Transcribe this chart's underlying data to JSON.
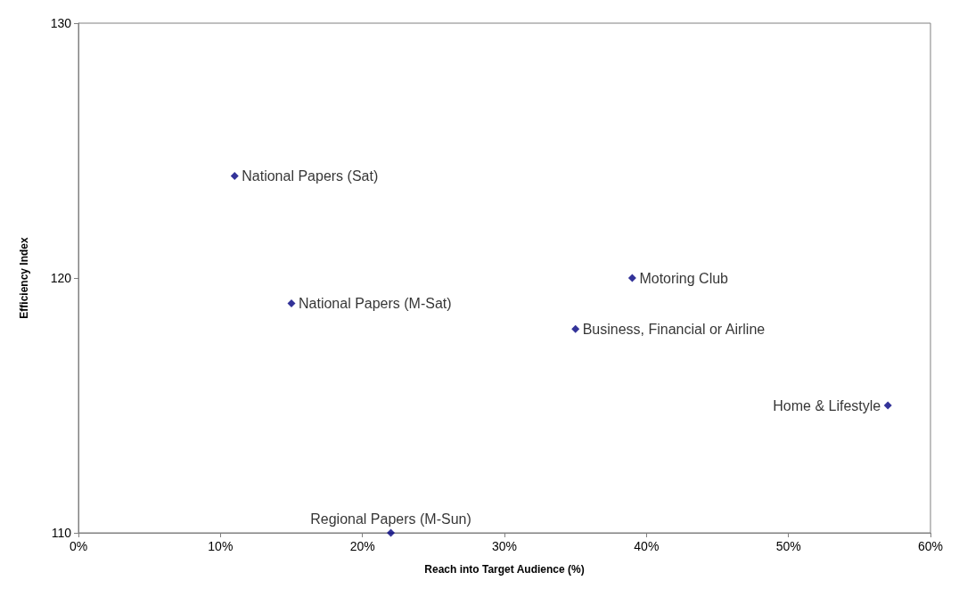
{
  "chart_data": {
    "type": "scatter",
    "xlabel": "Reach into Target Audience (%)",
    "ylabel": "Efficiency Index",
    "x": [
      11,
      15,
      22,
      35,
      39,
      57
    ],
    "values": [
      124,
      119,
      110,
      118,
      120,
      115
    ],
    "color": "#000080",
    "marker": "diamond",
    "grid": false,
    "xlim": [
      0,
      60
    ],
    "xticks": [
      {
        "value": 0,
        "label": "0%"
      },
      {
        "value": 10,
        "label": "10%"
      },
      {
        "value": 20,
        "label": "20%"
      },
      {
        "value": 30,
        "label": "30%"
      },
      {
        "value": 40,
        "label": "40%"
      },
      {
        "value": 50,
        "label": "50%"
      },
      {
        "value": 60,
        "label": "60%"
      }
    ],
    "ylim": [
      110,
      130
    ],
    "yticks": [
      110,
      120,
      130
    ],
    "annotations": [
      {
        "text": "National Papers (Sat)",
        "x": 11,
        "y": 124
      },
      {
        "text": "National Papers (M-Sat)",
        "x": 15,
        "y": 119
      },
      {
        "text": "Regional Papers (M-Sun)",
        "x": 22,
        "y": 110
      },
      {
        "text": "Business, Financial or Airline",
        "x": 35,
        "y": 118
      },
      {
        "text": "Motoring Club",
        "x": 39,
        "y": 120
      },
      {
        "text": "Home & Lifestyle",
        "x": 57,
        "y": 115
      }
    ]
  }
}
